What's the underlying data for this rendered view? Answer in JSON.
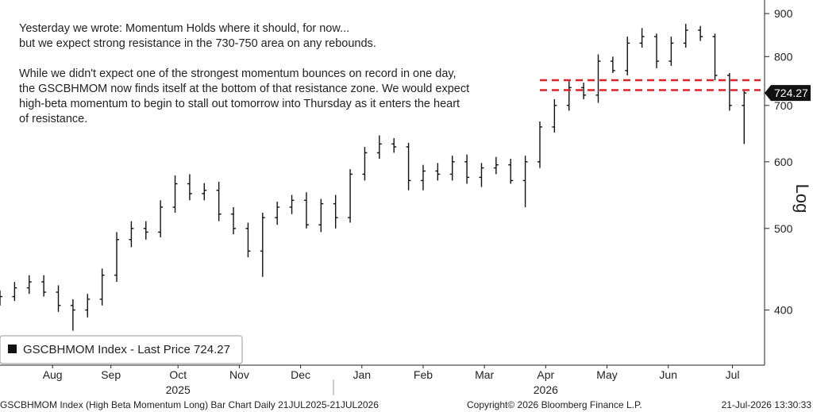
{
  "chart_data": {
    "type": "ohlc",
    "log_scale": true,
    "color": "#111111",
    "annotation": [
      [
        "Yesterday we wrote: Momentum Holds where it should, for now...",
        "but we expect strong resistance in the 730-750 area on any rebounds."
      ],
      [
        "While we didn't expect one of the strongest momentum bounces on record in one day,",
        "the GSCBHMOM now finds itself at the bottom of that resistance zone. We would expect",
        "high-beta momentum to begin to stall out tomorrow into Thursday as it enters the heart",
        "of resistance."
      ]
    ],
    "legend": "GSCBHMOM Index - Last Price 724.27",
    "reference_lines": [
      750,
      730
    ],
    "reference_color": "#d9262b",
    "y_axis_label": "Log",
    "x": [
      0,
      5,
      10,
      15,
      20,
      25,
      30,
      35,
      40,
      45,
      50,
      55,
      60,
      65,
      70,
      75,
      80,
      85,
      90,
      95,
      100,
      105,
      110,
      115,
      120,
      125,
      130,
      135,
      140,
      145,
      150,
      155,
      160,
      165,
      170,
      175,
      180,
      185,
      190,
      195,
      200,
      205,
      210,
      215,
      220,
      225,
      230,
      235,
      240,
      245,
      250,
      255
    ],
    "open": [
      410,
      415,
      425,
      432,
      420,
      405,
      400,
      412,
      440,
      485,
      500,
      495,
      530,
      565,
      550,
      555,
      520,
      500,
      470,
      515,
      530,
      540,
      505,
      535,
      515,
      580,
      615,
      630,
      625,
      570,
      585,
      580,
      600,
      575,
      590,
      595,
      570,
      600,
      660,
      700,
      735,
      720,
      790,
      770,
      830,
      845,
      790,
      830,
      860,
      845,
      760,
      700
    ],
    "high": [
      422,
      432,
      440,
      440,
      428,
      412,
      418,
      448,
      495,
      510,
      510,
      540,
      578,
      580,
      566,
      568,
      530,
      508,
      522,
      538,
      548,
      552,
      542,
      548,
      588,
      625,
      645,
      640,
      632,
      595,
      598,
      610,
      612,
      598,
      608,
      605,
      610,
      670,
      712,
      748,
      745,
      805,
      800,
      845,
      865,
      852,
      845,
      875,
      870,
      852,
      765,
      728
    ],
    "low": [
      405,
      410,
      418,
      415,
      398,
      378,
      392,
      405,
      432,
      475,
      485,
      488,
      522,
      540,
      540,
      510,
      492,
      462,
      438,
      505,
      520,
      500,
      495,
      500,
      508,
      570,
      605,
      615,
      555,
      555,
      570,
      570,
      565,
      560,
      580,
      565,
      530,
      590,
      650,
      690,
      712,
      705,
      765,
      760,
      820,
      775,
      780,
      820,
      835,
      750,
      690,
      630
    ],
    "close": [
      415,
      425,
      432,
      420,
      405,
      400,
      412,
      440,
      485,
      500,
      495,
      530,
      565,
      550,
      555,
      520,
      500,
      470,
      515,
      530,
      540,
      505,
      535,
      515,
      580,
      615,
      630,
      625,
      570,
      585,
      580,
      600,
      575,
      590,
      595,
      570,
      600,
      660,
      700,
      735,
      720,
      790,
      770,
      830,
      845,
      790,
      830,
      860,
      845,
      760,
      700,
      724.27
    ],
    "xlim": [
      0,
      262
    ],
    "xticks": [
      {
        "value": 18,
        "label": "Aug"
      },
      {
        "value": 38,
        "label": "Sep"
      },
      {
        "value": 61,
        "label": "Oct"
      },
      {
        "value": 82,
        "label": "Nov"
      },
      {
        "value": 103,
        "label": "Dec"
      },
      {
        "value": 124,
        "label": "Jan"
      },
      {
        "value": 145,
        "label": "Feb"
      },
      {
        "value": 166,
        "label": "Mar"
      },
      {
        "value": 187,
        "label": "Apr"
      },
      {
        "value": 208,
        "label": "May"
      },
      {
        "value": 229,
        "label": "Jun"
      },
      {
        "value": 251,
        "label": "Jul"
      }
    ],
    "year_labels": [
      {
        "value": 61,
        "label": "2025"
      },
      {
        "value": 187,
        "label": "2026"
      }
    ],
    "ylim": [
      344,
      934
    ],
    "yticks": [
      400,
      500,
      600,
      700,
      800,
      900
    ],
    "footer": [
      "GSCBHMOM Index (High Beta Momentum Long) Bar Chart Daily 21JUL2025-21JUL2026",
      "Copyright© 2026 Bloomberg Finance L.P.",
      "21-Jul-2026 13:30:33"
    ]
  }
}
